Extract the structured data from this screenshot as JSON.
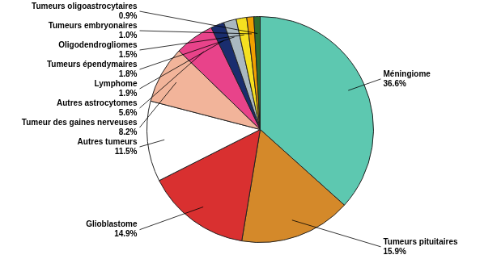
{
  "chart_data": {
    "type": "pie",
    "categories": [
      "Méningiome",
      "Tumeurs pituitaires",
      "Glioblastome",
      "Autres tumeurs",
      "Tumeur des gaines nerveuses",
      "Autres astrocytomes",
      "Lymphome",
      "Tumeurs épendymaires",
      "Oligodendrogliomes",
      "Tumeurs embryonaires",
      "Tumeurs oligoastrocytaires"
    ],
    "values": [
      36.6,
      15.9,
      14.9,
      11.5,
      8.2,
      5.6,
      1.9,
      1.8,
      1.5,
      1.0,
      0.9
    ],
    "value_labels": [
      "36.6%",
      "15.9%",
      "14.9%",
      "11.5%",
      "8.2%",
      "5.6%",
      "1.9%",
      "1.8%",
      "1.5%",
      "1.0%",
      "0.9%"
    ],
    "colors": [
      "#5dc8b0",
      "#d4892a",
      "#d93030",
      "#ffffff",
      "#f2b49a",
      "#e8438a",
      "#1a2d6e",
      "#aab8c0",
      "#f5e020",
      "#f0a000",
      "#2d6e30"
    ],
    "data_labels": true
  }
}
